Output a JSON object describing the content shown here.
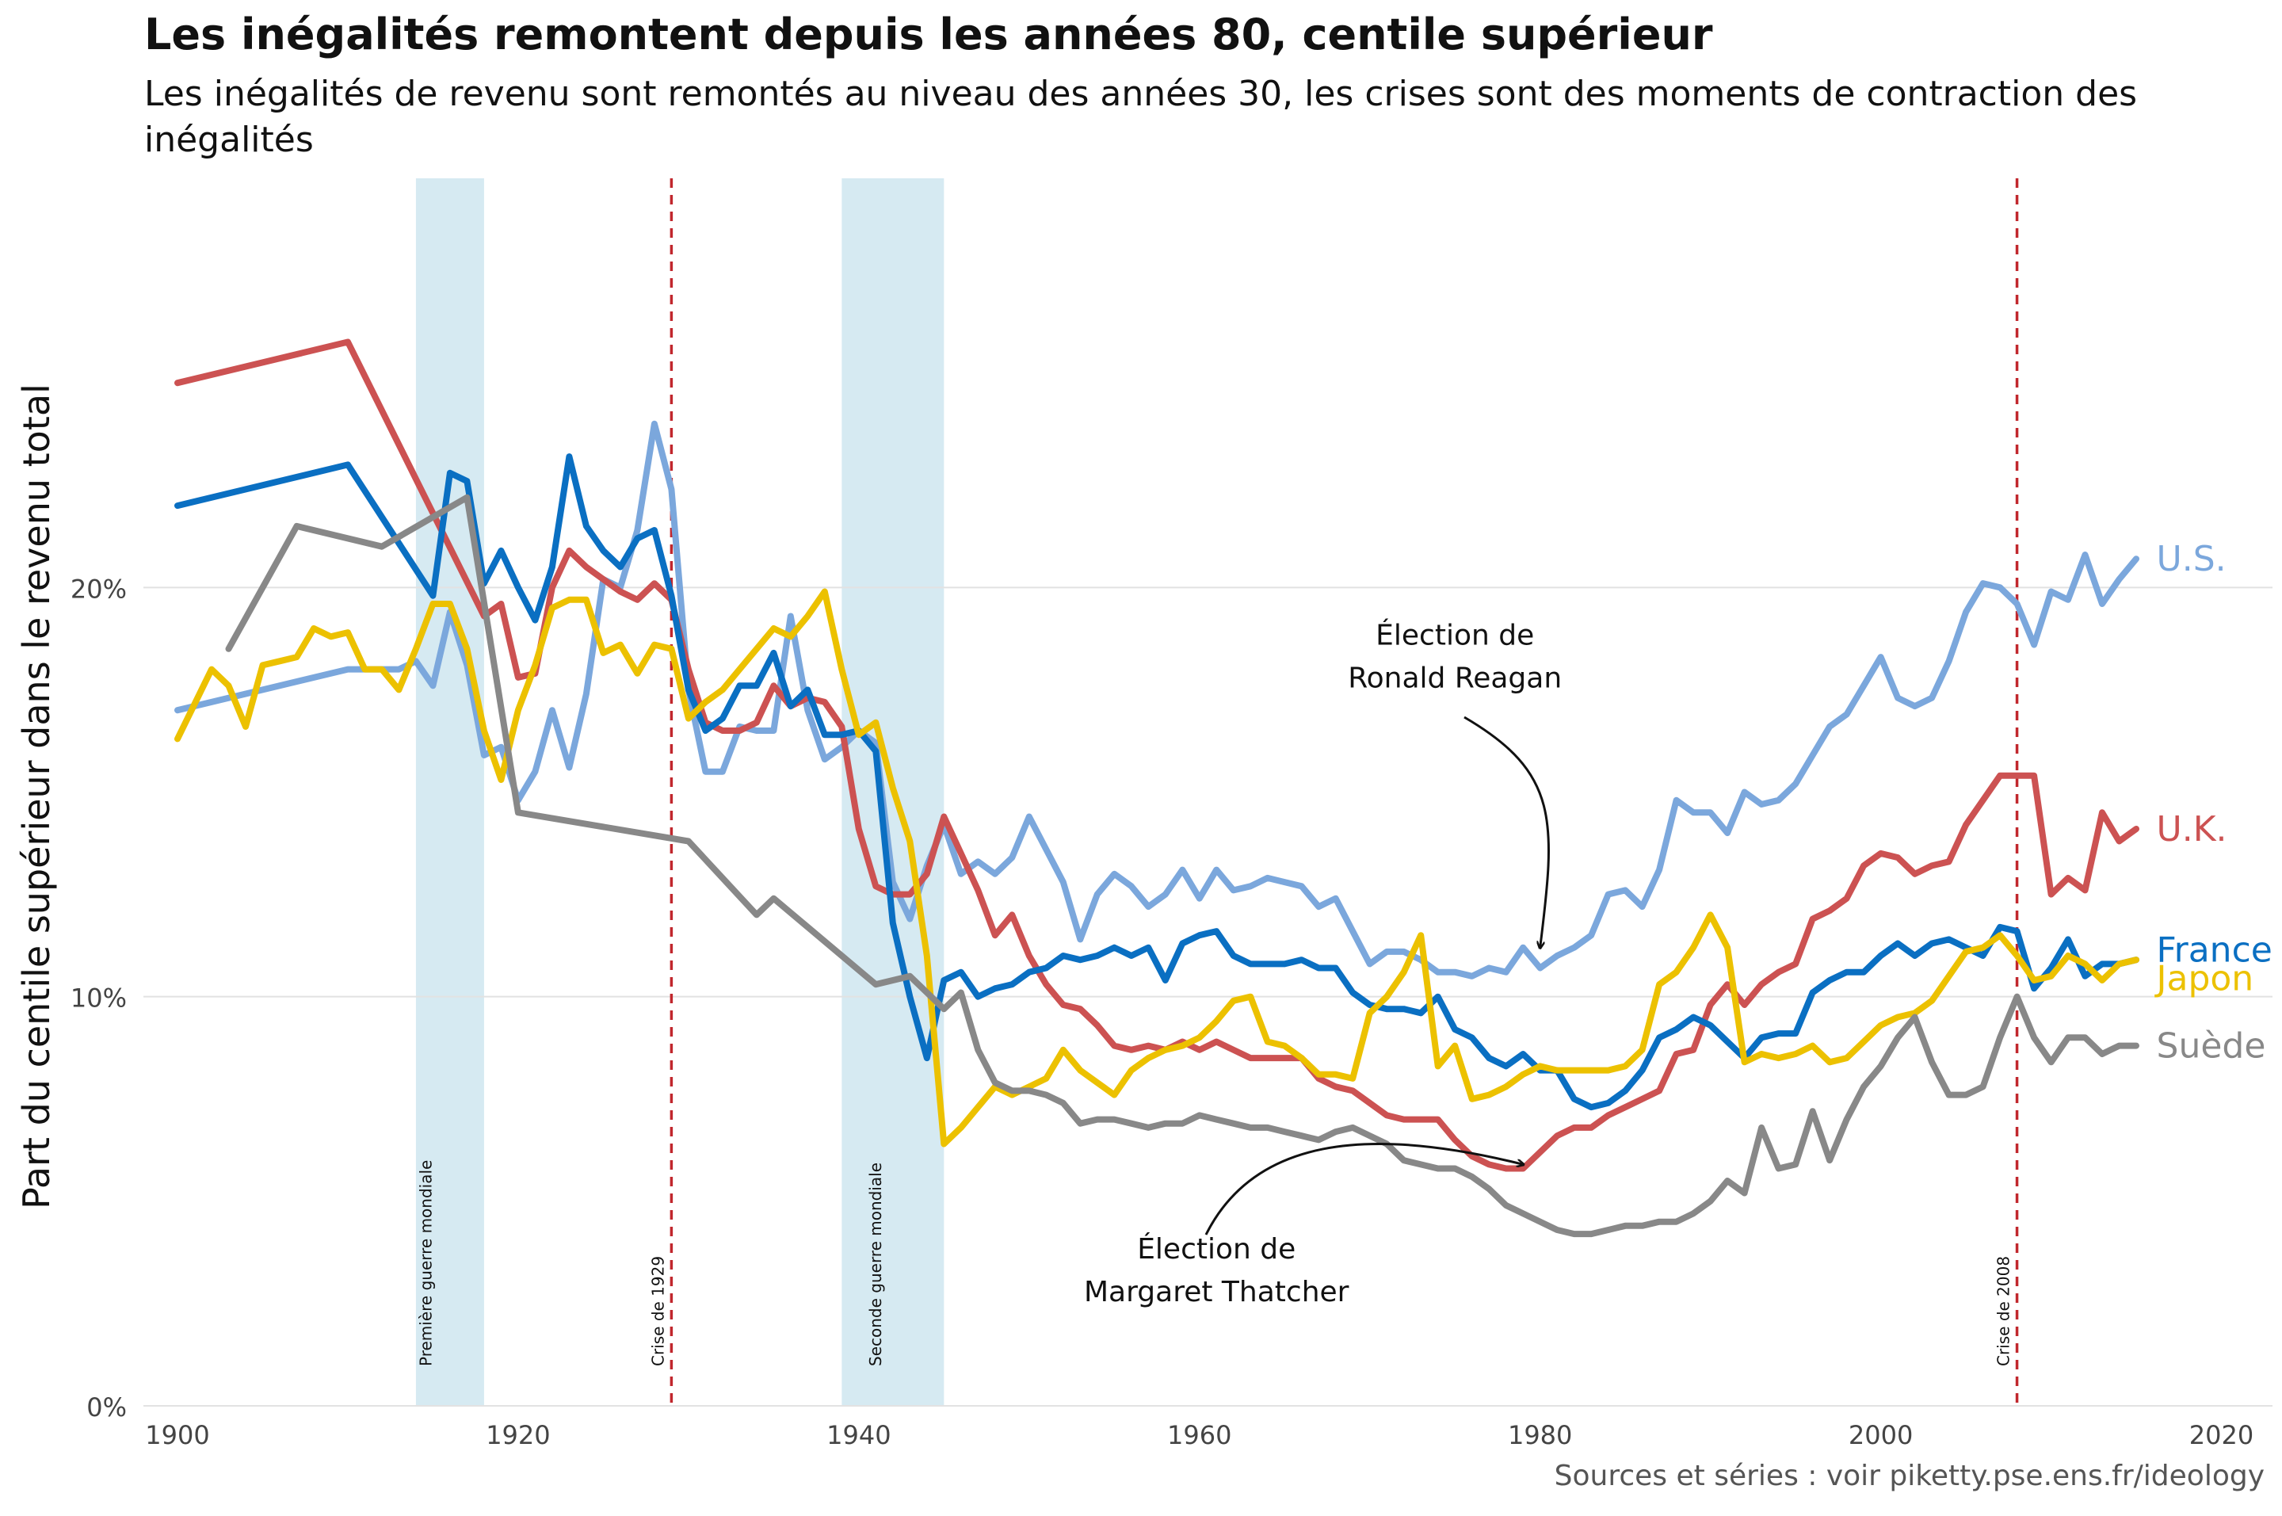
{
  "chart_data": {
    "type": "line",
    "title": "Les inégalités remontent depuis les années 80, centile supérieur",
    "subtitle": "Les inégalités de revenu sont remontés au niveau des années 30, les crises sont des moments de contraction des inégalités",
    "xlabel": "",
    "ylabel": "Part du centile supérieur dans le revenu total",
    "source": "Sources et séries : voir piketty.pse.ens.fr/ideology",
    "xlim": [
      1898,
      2023
    ],
    "ylim": [
      0,
      0.3
    ],
    "x_ticks": [
      1900,
      1920,
      1940,
      1960,
      1980,
      2000,
      2020
    ],
    "y_ticks": [
      0,
      0.1,
      0.2
    ],
    "y_tick_labels": [
      "0%",
      "10%",
      "20%"
    ],
    "grid": "horizontal",
    "legend": "direct labels at line ends",
    "shaded_periods": [
      {
        "start": 1914,
        "end": 1918,
        "label": "Première guerre mondiale"
      },
      {
        "start": 1939,
        "end": 1945,
        "label": "Seconde guerre mondiale"
      }
    ],
    "vlines": [
      {
        "x": 1929,
        "label": "Crise de 1929"
      },
      {
        "x": 2008,
        "label": "Crise de 2008"
      }
    ],
    "annotations": [
      {
        "lines": [
          "Élection de",
          "Ronald Reagan"
        ],
        "text_x": 1975,
        "text_y": 0.186,
        "target_x": 1980,
        "target_y": 0.112
      },
      {
        "lines": [
          "Élection de",
          "Margaret Thatcher"
        ],
        "text_x": 1961,
        "text_y": 0.036,
        "target_x": 1979,
        "target_y": 0.059
      }
    ],
    "series": [
      {
        "name": "U.S.",
        "color": "#7ba7dc",
        "x": [
          1900,
          1910,
          1913,
          1914,
          1915,
          1916,
          1917,
          1918,
          1919,
          1920,
          1921,
          1922,
          1923,
          1924,
          1925,
          1926,
          1927,
          1928,
          1929,
          1930,
          1931,
          1932,
          1933,
          1934,
          1935,
          1936,
          1937,
          1938,
          1939,
          1940,
          1941,
          1942,
          1943,
          1944,
          1945,
          1946,
          1947,
          1948,
          1949,
          1950,
          1951,
          1952,
          1953,
          1954,
          1955,
          1956,
          1957,
          1958,
          1959,
          1960,
          1961,
          1962,
          1963,
          1964,
          1965,
          1966,
          1967,
          1968,
          1969,
          1970,
          1971,
          1972,
          1973,
          1974,
          1975,
          1976,
          1977,
          1978,
          1979,
          1980,
          1981,
          1982,
          1983,
          1984,
          1985,
          1986,
          1987,
          1988,
          1989,
          1990,
          1991,
          1992,
          1993,
          1994,
          1995,
          1996,
          1997,
          1998,
          1999,
          2000,
          2001,
          2002,
          2003,
          2004,
          2005,
          2006,
          2007,
          2008,
          2009,
          2010,
          2011,
          2012,
          2013,
          2014,
          2015
        ],
        "y": [
          0.17,
          0.18,
          0.18,
          0.182,
          0.176,
          0.194,
          0.181,
          0.159,
          0.161,
          0.148,
          0.155,
          0.17,
          0.156,
          0.174,
          0.202,
          0.2,
          0.214,
          0.24,
          0.224,
          0.175,
          0.155,
          0.155,
          0.166,
          0.165,
          0.165,
          0.193,
          0.17,
          0.158,
          0.161,
          0.165,
          0.162,
          0.128,
          0.119,
          0.132,
          0.142,
          0.13,
          0.133,
          0.13,
          0.134,
          0.144,
          0.136,
          0.128,
          0.114,
          0.125,
          0.13,
          0.127,
          0.122,
          0.125,
          0.131,
          0.124,
          0.131,
          0.126,
          0.127,
          0.129,
          0.128,
          0.127,
          0.122,
          0.124,
          0.116,
          0.108,
          0.111,
          0.111,
          0.109,
          0.106,
          0.106,
          0.105,
          0.107,
          0.106,
          0.112,
          0.107,
          0.11,
          0.112,
          0.115,
          0.125,
          0.126,
          0.122,
          0.131,
          0.148,
          0.145,
          0.145,
          0.14,
          0.15,
          0.147,
          0.148,
          0.152,
          0.159,
          0.166,
          0.169,
          0.176,
          0.183,
          0.173,
          0.171,
          0.173,
          0.182,
          0.194,
          0.201,
          0.2,
          0.196,
          0.186,
          0.199,
          0.197,
          0.208,
          0.196,
          0.202,
          0.207
        ]
      },
      {
        "name": "U.K.",
        "color": "#cc5252",
        "x": [
          1900,
          1910,
          1918,
          1919,
          1920,
          1921,
          1922,
          1923,
          1924,
          1925,
          1926,
          1927,
          1928,
          1929,
          1930,
          1931,
          1932,
          1933,
          1934,
          1935,
          1936,
          1937,
          1938,
          1939,
          1940,
          1941,
          1942,
          1943,
          1944,
          1945,
          1946,
          1947,
          1948,
          1949,
          1950,
          1951,
          1952,
          1953,
          1954,
          1955,
          1956,
          1957,
          1958,
          1959,
          1960,
          1961,
          1962,
          1963,
          1964,
          1965,
          1966,
          1967,
          1968,
          1969,
          1970,
          1971,
          1972,
          1973,
          1974,
          1975,
          1976,
          1977,
          1978,
          1979,
          1980,
          1981,
          1982,
          1983,
          1984,
          1985,
          1986,
          1987,
          1988,
          1989,
          1990,
          1991,
          1992,
          1993,
          1994,
          1995,
          1996,
          1997,
          1998,
          1999,
          2000,
          2001,
          2002,
          2003,
          2004,
          2005,
          2006,
          2007,
          2008,
          2009,
          2010,
          2011,
          2012,
          2013,
          2014,
          2015
        ],
        "y": [
          0.25,
          0.26,
          0.193,
          0.196,
          0.178,
          0.179,
          0.2,
          0.209,
          0.205,
          0.202,
          0.199,
          0.197,
          0.201,
          0.197,
          0.18,
          0.167,
          0.165,
          0.165,
          0.167,
          0.176,
          0.171,
          0.173,
          0.172,
          0.166,
          0.141,
          0.127,
          0.125,
          0.125,
          0.13,
          0.144,
          0.135,
          0.126,
          0.115,
          0.12,
          0.11,
          0.103,
          0.098,
          0.097,
          0.093,
          0.088,
          0.087,
          0.088,
          0.087,
          0.089,
          0.087,
          0.089,
          0.087,
          0.085,
          0.085,
          0.085,
          0.085,
          0.08,
          0.078,
          0.077,
          0.074,
          0.071,
          0.07,
          0.07,
          0.07,
          0.065,
          0.061,
          0.059,
          0.058,
          0.058,
          0.062,
          0.066,
          0.068,
          0.068,
          0.071,
          0.073,
          0.075,
          0.077,
          0.086,
          0.087,
          0.098,
          0.103,
          0.098,
          0.103,
          0.106,
          0.108,
          0.119,
          0.121,
          0.124,
          0.132,
          0.135,
          0.134,
          0.13,
          0.132,
          0.133,
          0.142,
          0.148,
          0.154,
          0.154,
          0.154,
          0.125,
          0.129,
          0.126,
          0.145,
          0.138,
          0.141
        ]
      },
      {
        "name": "France",
        "color": "#0a6fc2",
        "x": [
          1900,
          1910,
          1915,
          1916,
          1917,
          1918,
          1919,
          1920,
          1921,
          1922,
          1923,
          1924,
          1925,
          1926,
          1927,
          1928,
          1929,
          1930,
          1931,
          1932,
          1933,
          1934,
          1935,
          1936,
          1937,
          1938,
          1939,
          1940,
          1941,
          1942,
          1943,
          1944,
          1945,
          1946,
          1947,
          1948,
          1949,
          1950,
          1951,
          1952,
          1953,
          1954,
          1955,
          1956,
          1957,
          1958,
          1959,
          1960,
          1961,
          1962,
          1963,
          1964,
          1965,
          1966,
          1967,
          1968,
          1969,
          1970,
          1971,
          1972,
          1973,
          1974,
          1975,
          1976,
          1977,
          1978,
          1979,
          1980,
          1981,
          1982,
          1983,
          1984,
          1985,
          1986,
          1987,
          1988,
          1989,
          1990,
          1991,
          1992,
          1993,
          1994,
          1995,
          1996,
          1997,
          1998,
          1999,
          2000,
          2001,
          2002,
          2003,
          2004,
          2005,
          2006,
          2007,
          2008,
          2009,
          2010,
          2011,
          2012,
          2013,
          2014,
          2015
        ],
        "y": [
          0.22,
          0.23,
          0.198,
          0.228,
          0.226,
          0.201,
          0.209,
          0.2,
          0.192,
          0.205,
          0.232,
          0.215,
          0.209,
          0.205,
          0.212,
          0.214,
          0.198,
          0.175,
          0.165,
          0.168,
          0.176,
          0.176,
          0.184,
          0.171,
          0.175,
          0.164,
          0.164,
          0.165,
          0.16,
          0.118,
          0.1,
          0.085,
          0.104,
          0.106,
          0.1,
          0.102,
          0.103,
          0.106,
          0.107,
          0.11,
          0.109,
          0.11,
          0.112,
          0.11,
          0.112,
          0.104,
          0.113,
          0.115,
          0.116,
          0.11,
          0.108,
          0.108,
          0.108,
          0.109,
          0.107,
          0.107,
          0.101,
          0.098,
          0.097,
          0.097,
          0.096,
          0.1,
          0.092,
          0.09,
          0.085,
          0.083,
          0.086,
          0.082,
          0.082,
          0.075,
          0.073,
          0.074,
          0.077,
          0.082,
          0.09,
          0.092,
          0.095,
          0.093,
          0.089,
          0.085,
          0.09,
          0.091,
          0.091,
          0.101,
          0.104,
          0.106,
          0.106,
          0.11,
          0.113,
          0.11,
          0.113,
          0.114,
          0.112,
          0.11,
          0.117,
          0.116,
          0.102,
          0.107,
          0.114,
          0.105,
          0.108,
          0.108,
          0.109
        ]
      },
      {
        "name": "Japon",
        "color": "#ecc100",
        "x": [
          1900,
          1902,
          1903,
          1904,
          1905,
          1906,
          1907,
          1908,
          1909,
          1910,
          1911,
          1912,
          1913,
          1914,
          1915,
          1916,
          1917,
          1918,
          1919,
          1920,
          1921,
          1922,
          1923,
          1924,
          1925,
          1926,
          1927,
          1928,
          1929,
          1930,
          1931,
          1932,
          1933,
          1934,
          1935,
          1936,
          1937,
          1938,
          1939,
          1940,
          1941,
          1942,
          1943,
          1944,
          1945,
          1946,
          1947,
          1948,
          1949,
          1950,
          1951,
          1952,
          1953,
          1954,
          1955,
          1956,
          1957,
          1958,
          1959,
          1960,
          1961,
          1962,
          1963,
          1964,
          1965,
          1966,
          1967,
          1968,
          1969,
          1970,
          1971,
          1972,
          1973,
          1974,
          1975,
          1976,
          1977,
          1978,
          1979,
          1980,
          1981,
          1982,
          1983,
          1984,
          1985,
          1986,
          1987,
          1988,
          1989,
          1990,
          1991,
          1992,
          1993,
          1994,
          1995,
          1996,
          1997,
          1998,
          1999,
          2000,
          2001,
          2002,
          2003,
          2004,
          2005,
          2006,
          2007,
          2008,
          2009,
          2010,
          2011,
          2012,
          2013,
          2014,
          2015
        ],
        "y": [
          0.163,
          0.18,
          0.176,
          0.166,
          0.181,
          0.182,
          0.183,
          0.19,
          0.188,
          0.189,
          0.18,
          0.18,
          0.175,
          0.185,
          0.196,
          0.196,
          0.185,
          0.165,
          0.153,
          0.17,
          0.181,
          0.195,
          0.197,
          0.197,
          0.184,
          0.186,
          0.179,
          0.186,
          0.185,
          0.168,
          0.172,
          0.175,
          0.18,
          0.185,
          0.19,
          0.188,
          0.193,
          0.199,
          0.18,
          0.164,
          0.167,
          0.151,
          0.138,
          0.11,
          0.064,
          0.068,
          0.073,
          0.078,
          0.076,
          0.078,
          0.08,
          0.087,
          0.082,
          0.079,
          0.076,
          0.082,
          0.085,
          0.087,
          0.088,
          0.09,
          0.094,
          0.099,
          0.1,
          0.089,
          0.088,
          0.085,
          0.081,
          0.081,
          0.08,
          0.096,
          0.1,
          0.106,
          0.115,
          0.083,
          0.088,
          0.075,
          0.076,
          0.078,
          0.081,
          0.083,
          0.082,
          0.082,
          0.082,
          0.082,
          0.083,
          0.087,
          0.103,
          0.106,
          0.112,
          0.12,
          0.112,
          0.084,
          0.086,
          0.085,
          0.086,
          0.088,
          0.084,
          0.085,
          0.089,
          0.093,
          0.095,
          0.096,
          0.099,
          0.105,
          0.111,
          0.112,
          0.115,
          0.11,
          0.104,
          0.105,
          0.11,
          0.108,
          0.104,
          0.108,
          0.109
        ]
      },
      {
        "name": "Suède",
        "color": "#888888",
        "x": [
          1903,
          1907,
          1912,
          1917,
          1920,
          1930,
          1934,
          1935,
          1941,
          1943,
          1945,
          1946,
          1947,
          1948,
          1949,
          1950,
          1951,
          1952,
          1953,
          1954,
          1955,
          1956,
          1957,
          1958,
          1959,
          1960,
          1961,
          1962,
          1963,
          1964,
          1965,
          1966,
          1967,
          1968,
          1969,
          1970,
          1971,
          1972,
          1973,
          1974,
          1975,
          1976,
          1977,
          1978,
          1979,
          1980,
          1981,
          1982,
          1983,
          1984,
          1985,
          1986,
          1987,
          1988,
          1989,
          1990,
          1991,
          1992,
          1993,
          1994,
          1995,
          1996,
          1997,
          1998,
          1999,
          2000,
          2001,
          2002,
          2003,
          2004,
          2005,
          2006,
          2007,
          2008,
          2009,
          2010,
          2011,
          2012,
          2013,
          2014,
          2015
        ],
        "y": [
          0.185,
          0.215,
          0.21,
          0.222,
          0.145,
          0.138,
          0.12,
          0.124,
          0.103,
          0.105,
          0.097,
          0.101,
          0.087,
          0.079,
          0.077,
          0.077,
          0.076,
          0.074,
          0.069,
          0.07,
          0.07,
          0.069,
          0.068,
          0.069,
          0.069,
          0.071,
          0.07,
          0.069,
          0.068,
          0.068,
          0.067,
          0.066,
          0.065,
          0.067,
          0.068,
          0.066,
          0.064,
          0.06,
          0.059,
          0.058,
          0.058,
          0.056,
          0.053,
          0.049,
          0.047,
          0.045,
          0.043,
          0.042,
          0.042,
          0.043,
          0.044,
          0.044,
          0.045,
          0.045,
          0.047,
          0.05,
          0.055,
          0.052,
          0.068,
          0.058,
          0.059,
          0.072,
          0.06,
          0.07,
          0.078,
          0.083,
          0.09,
          0.095,
          0.084,
          0.076,
          0.076,
          0.078,
          0.09,
          0.1,
          0.09,
          0.084,
          0.09,
          0.09,
          0.086,
          0.088,
          0.088
        ]
      }
    ]
  }
}
